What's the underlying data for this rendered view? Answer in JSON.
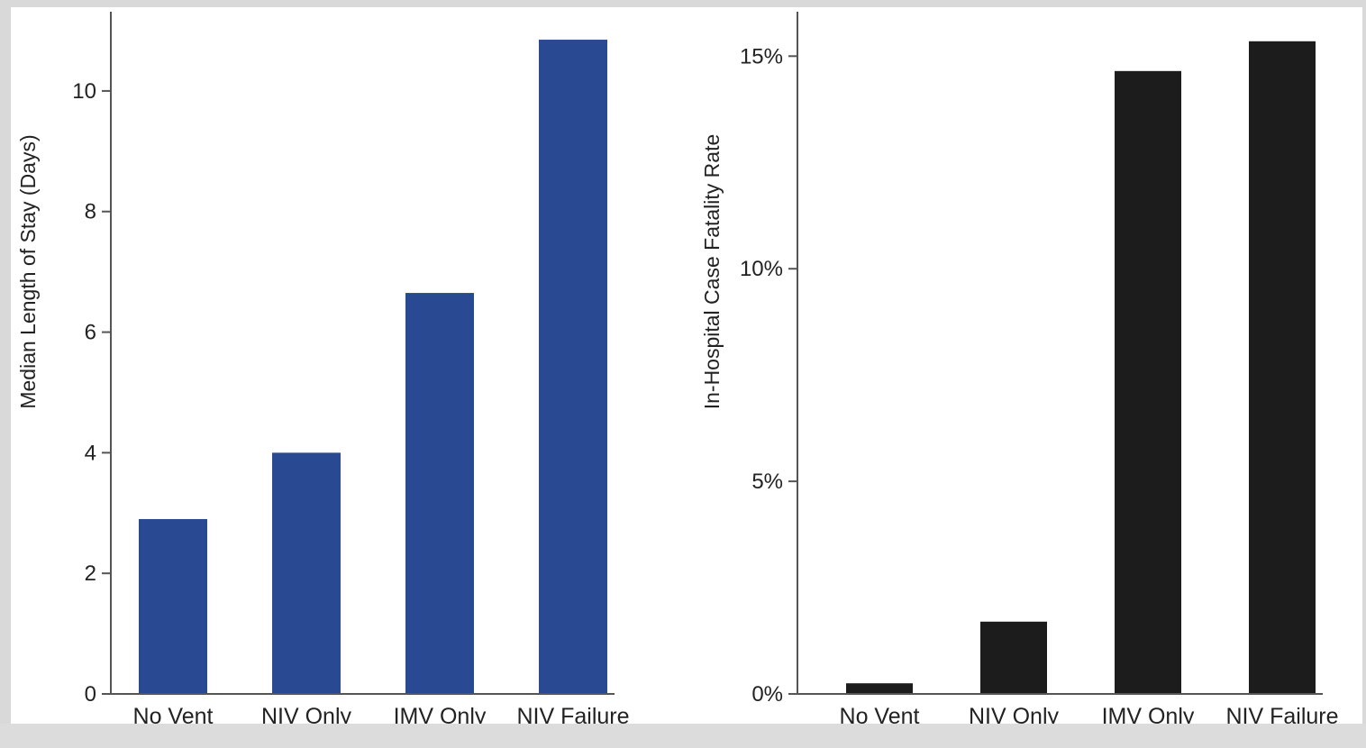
{
  "chart_data": [
    {
      "type": "bar",
      "title": "",
      "xlabel": "",
      "ylabel": "Median Length of Stay (Days)",
      "categories": [
        "No Vent",
        "NIV Only",
        "IMV Only",
        "NIV Failure"
      ],
      "values": [
        2.9,
        4.0,
        6.65,
        10.85
      ],
      "ylim": [
        0,
        11
      ],
      "yticks": [
        0,
        2,
        4,
        6,
        8,
        10
      ],
      "ytick_labels": [
        "0",
        "2",
        "4",
        "6",
        "8",
        "10"
      ],
      "bar_color": "#2a4993",
      "grid": false,
      "legend": "none"
    },
    {
      "type": "bar",
      "title": "",
      "xlabel": "",
      "ylabel": "In-Hospital Case Fatality Rate",
      "categories": [
        "No Vent",
        "NIV Only",
        "IMV Only",
        "NIV Failure"
      ],
      "values": [
        0.25,
        1.7,
        14.65,
        15.35
      ],
      "ylim": [
        0,
        15.6
      ],
      "yticks": [
        0,
        5,
        10,
        15
      ],
      "ytick_labels": [
        "0%",
        "5%",
        "10%",
        "15%"
      ],
      "bar_color": "#1c1c1c",
      "grid": false,
      "legend": "none"
    }
  ]
}
